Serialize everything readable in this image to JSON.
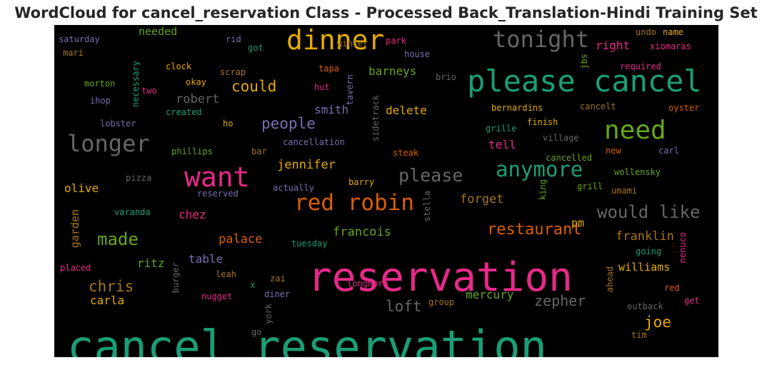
{
  "title": "WordCloud for cancel_reservation Class - Processed Back_Translation-Hindi Training Set",
  "colors": {
    "background": "#000000",
    "palette": [
      "#1b9e77",
      "#d95f02",
      "#7570b3",
      "#e7298a",
      "#66a61e",
      "#e6ab02",
      "#a6761d",
      "#666666"
    ]
  },
  "words": [
    {
      "text": "cancel reservation",
      "color": "#1b9e77",
      "size": 62,
      "vertical": false
    },
    {
      "text": "reservation",
      "color": "#e7298a",
      "size": 56,
      "vertical": false
    },
    {
      "text": "please cancel",
      "color": "#1b9e77",
      "size": 42,
      "vertical": false
    },
    {
      "text": "dinner",
      "color": "#e6ab02",
      "size": 38,
      "vertical": false
    },
    {
      "text": "want",
      "color": "#e7298a",
      "size": 38,
      "vertical": false
    },
    {
      "text": "need",
      "color": "#66a61e",
      "size": 36,
      "vertical": false
    },
    {
      "text": "tonight",
      "color": "#666666",
      "size": 32,
      "vertical": false
    },
    {
      "text": "longer",
      "color": "#666666",
      "size": 32,
      "vertical": false
    },
    {
      "text": "red robin",
      "color": "#d95f02",
      "size": 31,
      "vertical": false
    },
    {
      "text": "anymore",
      "color": "#1b9e77",
      "size": 29,
      "vertical": false
    },
    {
      "text": "please",
      "color": "#666666",
      "size": 25,
      "vertical": false
    },
    {
      "text": "would like",
      "color": "#666666",
      "size": 24,
      "vertical": false
    },
    {
      "text": "made",
      "color": "#66a61e",
      "size": 24,
      "vertical": false
    },
    {
      "text": "restaurant",
      "color": "#d95f02",
      "size": 22,
      "vertical": false
    },
    {
      "text": "could",
      "color": "#e6ab02",
      "size": 21,
      "vertical": false
    },
    {
      "text": "people",
      "color": "#7570b3",
      "size": 21,
      "vertical": false
    },
    {
      "text": "chris",
      "color": "#a6761d",
      "size": 21,
      "vertical": false
    },
    {
      "text": "loft",
      "color": "#666666",
      "size": 21,
      "vertical": false
    },
    {
      "text": "zepher",
      "color": "#666666",
      "size": 20,
      "vertical": false
    },
    {
      "text": "joe",
      "color": "#e6ab02",
      "size": 21,
      "vertical": false
    },
    {
      "text": "jennifer",
      "color": "#e6ab02",
      "size": 17,
      "vertical": false
    },
    {
      "text": "robert",
      "color": "#666666",
      "size": 17,
      "vertical": false
    },
    {
      "text": "palace",
      "color": "#d95f02",
      "size": 17,
      "vertical": false
    },
    {
      "text": "francois",
      "color": "#66a61e",
      "size": 17,
      "vertical": false
    },
    {
      "text": "forget",
      "color": "#a6761d",
      "size": 17,
      "vertical": false
    },
    {
      "text": "franklin",
      "color": "#a6761d",
      "size": 17,
      "vertical": false
    },
    {
      "text": "smith",
      "color": "#7570b3",
      "size": 16,
      "vertical": false
    },
    {
      "text": "barneys",
      "color": "#66a61e",
      "size": 16,
      "vertical": false
    },
    {
      "text": "delete",
      "color": "#e6ab02",
      "size": 16,
      "vertical": false
    },
    {
      "text": "right",
      "color": "#e7298a",
      "size": 16,
      "vertical": false
    },
    {
      "text": "tell",
      "color": "#e7298a",
      "size": 16,
      "vertical": false
    },
    {
      "text": "olive",
      "color": "#e6ab02",
      "size": 16,
      "vertical": false
    },
    {
      "text": "chez",
      "color": "#e7298a",
      "size": 16,
      "vertical": false
    },
    {
      "text": "table",
      "color": "#7570b3",
      "size": 16,
      "vertical": false
    },
    {
      "text": "ritz",
      "color": "#66a61e",
      "size": 16,
      "vertical": false
    },
    {
      "text": "carla",
      "color": "#e6ab02",
      "size": 16,
      "vertical": false
    },
    {
      "text": "mercury",
      "color": "#66a61e",
      "size": 16,
      "vertical": false
    },
    {
      "text": "williams",
      "color": "#e6ab02",
      "size": 15,
      "vertical": false
    },
    {
      "text": "pm",
      "color": "#e6ab02",
      "size": 15,
      "vertical": false
    },
    {
      "text": "needed",
      "color": "#66a61e",
      "size": 15,
      "vertical": false
    },
    {
      "text": "garden",
      "color": "#a6761d",
      "size": 15,
      "vertical": true
    },
    {
      "text": "saturday",
      "color": "#7570b3",
      "size": 12,
      "vertical": false
    },
    {
      "text": "mari",
      "color": "#a6761d",
      "size": 12,
      "vertical": false
    },
    {
      "text": "rid",
      "color": "#7570b3",
      "size": 12,
      "vertical": false
    },
    {
      "text": "got",
      "color": "#1b9e77",
      "size": 12,
      "vertical": false
    },
    {
      "text": "park",
      "color": "#e7298a",
      "size": 12,
      "vertical": false
    },
    {
      "text": "winter",
      "color": "#a6761d",
      "size": 12,
      "vertical": false
    },
    {
      "text": "house",
      "color": "#7570b3",
      "size": 12,
      "vertical": false
    },
    {
      "text": "clock",
      "color": "#e6ab02",
      "size": 12,
      "vertical": false
    },
    {
      "text": "scrap",
      "color": "#a6761d",
      "size": 12,
      "vertical": false
    },
    {
      "text": "tapa",
      "color": "#d95f02",
      "size": 12,
      "vertical": false
    },
    {
      "text": "brio",
      "color": "#666666",
      "size": 12,
      "vertical": false
    },
    {
      "text": "morton",
      "color": "#66a61e",
      "size": 12,
      "vertical": false
    },
    {
      "text": "necessary",
      "color": "#1b9e77",
      "size": 12,
      "vertical": true
    },
    {
      "text": "okay",
      "color": "#e6ab02",
      "size": 12,
      "vertical": false
    },
    {
      "text": "hut",
      "color": "#e7298a",
      "size": 12,
      "vertical": false
    },
    {
      "text": "tavern",
      "color": "#7570b3",
      "size": 12,
      "vertical": true
    },
    {
      "text": "two",
      "color": "#e7298a",
      "size": 12,
      "vertical": false
    },
    {
      "text": "ihop",
      "color": "#7570b3",
      "size": 12,
      "vertical": false
    },
    {
      "text": "created",
      "color": "#1b9e77",
      "size": 12,
      "vertical": false
    },
    {
      "text": "sidetrack",
      "color": "#666666",
      "size": 12,
      "vertical": true
    },
    {
      "text": "lobster",
      "color": "#7570b3",
      "size": 12,
      "vertical": false
    },
    {
      "text": "ho",
      "color": "#e6ab02",
      "size": 12,
      "vertical": false
    },
    {
      "text": "cancellation",
      "color": "#7570b3",
      "size": 12,
      "vertical": false
    },
    {
      "text": "phillips",
      "color": "#66a61e",
      "size": 12,
      "vertical": false
    },
    {
      "text": "bar",
      "color": "#a6761d",
      "size": 12,
      "vertical": false
    },
    {
      "text": "steak",
      "color": "#d95f02",
      "size": 12,
      "vertical": false
    },
    {
      "text": "pizza",
      "color": "#666666",
      "size": 12,
      "vertical": false
    },
    {
      "text": "reserved",
      "color": "#7570b3",
      "size": 12,
      "vertical": false
    },
    {
      "text": "actually",
      "color": "#7570b3",
      "size": 12,
      "vertical": false
    },
    {
      "text": "barry",
      "color": "#e6ab02",
      "size": 12,
      "vertical": false
    },
    {
      "text": "stella",
      "color": "#666666",
      "size": 12,
      "vertical": true
    },
    {
      "text": "varanda",
      "color": "#1b9e77",
      "size": 12,
      "vertical": false
    },
    {
      "text": "tuesday",
      "color": "#1b9e77",
      "size": 12,
      "vertical": false
    },
    {
      "text": "burger",
      "color": "#666666",
      "size": 12,
      "vertical": true
    },
    {
      "text": "placed",
      "color": "#e7298a",
      "size": 12,
      "vertical": false
    },
    {
      "text": "leah",
      "color": "#a6761d",
      "size": 12,
      "vertical": false
    },
    {
      "text": "zai",
      "color": "#a6761d",
      "size": 12,
      "vertical": false
    },
    {
      "text": "x",
      "color": "#1b9e77",
      "size": 12,
      "vertical": false
    },
    {
      "text": "longhorn",
      "color": "#e7298a",
      "size": 12,
      "vertical": false
    },
    {
      "text": "nugget",
      "color": "#e7298a",
      "size": 12,
      "vertical": false
    },
    {
      "text": "diner",
      "color": "#7570b3",
      "size": 12,
      "vertical": false
    },
    {
      "text": "group",
      "color": "#a6761d",
      "size": 12,
      "vertical": false
    },
    {
      "text": "york",
      "color": "#666666",
      "size": 12,
      "vertical": true
    },
    {
      "text": "go",
      "color": "#666666",
      "size": 12,
      "vertical": false
    },
    {
      "text": "undo",
      "color": "#a6761d",
      "size": 12,
      "vertical": false
    },
    {
      "text": "name",
      "color": "#e6ab02",
      "size": 12,
      "vertical": false
    },
    {
      "text": "xiomaras",
      "color": "#e7298a",
      "size": 12,
      "vertical": false
    },
    {
      "text": "jbs",
      "color": "#66a61e",
      "size": 12,
      "vertical": true
    },
    {
      "text": "required",
      "color": "#e7298a",
      "size": 12,
      "vertical": false
    },
    {
      "text": "bernardins",
      "color": "#e6ab02",
      "size": 12,
      "vertical": false
    },
    {
      "text": "cancelt",
      "color": "#a6761d",
      "size": 12,
      "vertical": false
    },
    {
      "text": "oyster",
      "color": "#d95f02",
      "size": 12,
      "vertical": false
    },
    {
      "text": "finish",
      "color": "#e6ab02",
      "size": 12,
      "vertical": false
    },
    {
      "text": "grille",
      "color": "#1b9e77",
      "size": 12,
      "vertical": false
    },
    {
      "text": "village",
      "color": "#666666",
      "size": 12,
      "vertical": false
    },
    {
      "text": "new",
      "color": "#d95f02",
      "size": 12,
      "vertical": false
    },
    {
      "text": "carl",
      "color": "#7570b3",
      "size": 12,
      "vertical": false
    },
    {
      "text": "cancelled",
      "color": "#66a61e",
      "size": 12,
      "vertical": false
    },
    {
      "text": "wollensky",
      "color": "#66a61e",
      "size": 12,
      "vertical": false
    },
    {
      "text": "king",
      "color": "#66a61e",
      "size": 12,
      "vertical": true
    },
    {
      "text": "grill",
      "color": "#66a61e",
      "size": 12,
      "vertical": false
    },
    {
      "text": "umami",
      "color": "#a6761d",
      "size": 12,
      "vertical": false
    },
    {
      "text": "going",
      "color": "#1b9e77",
      "size": 12,
      "vertical": false
    },
    {
      "text": "nenuco",
      "color": "#e7298a",
      "size": 12,
      "vertical": true
    },
    {
      "text": "ahead",
      "color": "#a6761d",
      "size": 12,
      "vertical": true
    },
    {
      "text": "red",
      "color": "#d95f02",
      "size": 12,
      "vertical": false
    },
    {
      "text": "get",
      "color": "#e7298a",
      "size": 12,
      "vertical": false
    },
    {
      "text": "outback",
      "color": "#666666",
      "size": 12,
      "vertical": false
    },
    {
      "text": "tim",
      "color": "#a6761d",
      "size": 12,
      "vertical": false
    }
  ]
}
